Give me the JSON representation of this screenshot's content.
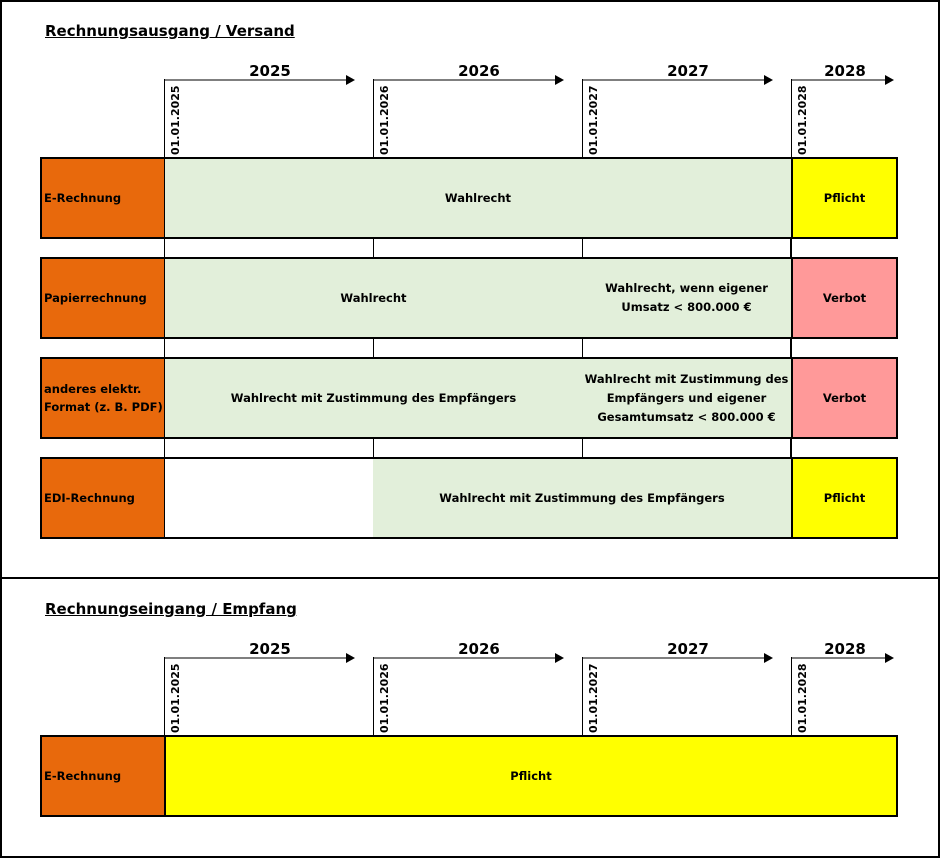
{
  "sections": [
    {
      "title": "Rechnungsausgang / Versand",
      "years": [
        "2025",
        "2026",
        "2027",
        "2028"
      ],
      "dates": [
        "01.01.2025",
        "01.01.2026",
        "01.01.2027",
        "01.01.2028"
      ],
      "rows": [
        {
          "label": "E-Rechnung",
          "cells": [
            "Wahlrecht",
            "Pflicht"
          ]
        },
        {
          "label": "Papierrechnung",
          "cells": [
            "Wahlrecht",
            "Wahlrecht, wenn eigener Umsatz < 800.000 €",
            "Verbot"
          ]
        },
        {
          "label": "anderes elektr. Format (z. B. PDF)",
          "cells": [
            "Wahlrecht mit Zustimmung des Empfängers",
            "Wahlrecht mit Zustimmung des Empfängers und eigener Gesamtumsatz < 800.000 €",
            "Verbot"
          ]
        },
        {
          "label": "EDI-Rechnung",
          "cells": [
            "",
            "Wahlrecht mit Zustimmung des Empfängers",
            "Pflicht"
          ]
        }
      ]
    },
    {
      "title": "Rechnungseingang / Empfang",
      "years": [
        "2025",
        "2026",
        "2027",
        "2028"
      ],
      "dates": [
        "01.01.2025",
        "01.01.2026",
        "01.01.2027",
        "01.01.2028"
      ],
      "rows": [
        {
          "label": "E-Rechnung",
          "cells": [
            "Pflicht"
          ]
        }
      ]
    }
  ],
  "colors": {
    "label": "#E8690C",
    "wahlrecht": "#E2EFDA",
    "pflicht": "#FFFF00",
    "verbot": "#FF9999"
  }
}
